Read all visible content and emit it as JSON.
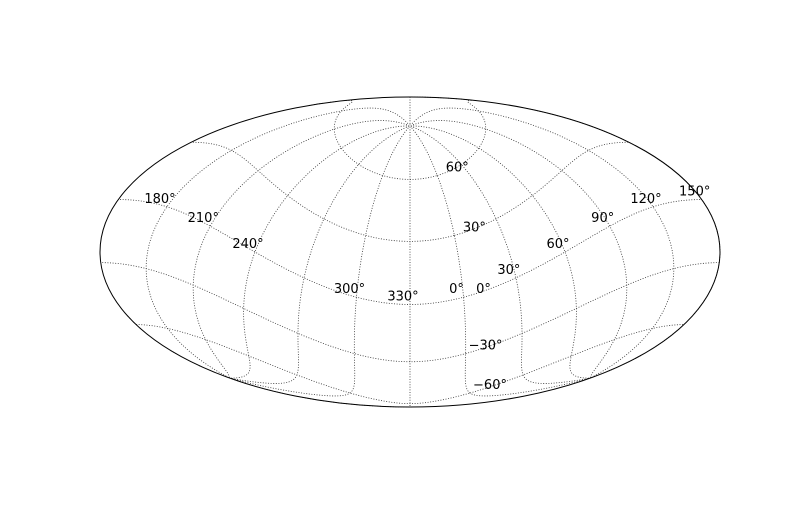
{
  "chart_data": {
    "type": "scatter",
    "projection": "mollweide",
    "title": "",
    "grid": true,
    "grid_style": "dotted",
    "grid_pole": {
      "rotation_deg": 30,
      "tilt_deg": 25
    },
    "frame_color": "#000000",
    "grid_color": "#333333",
    "parallels_deg": [
      -60,
      -30,
      0,
      30,
      60
    ],
    "meridians_deg": [
      0,
      30,
      60,
      90,
      120,
      150,
      180,
      210,
      240,
      270,
      300,
      330
    ],
    "lat_labels": [
      {
        "value": 60,
        "text": "60°"
      },
      {
        "value": 30,
        "text": "30°"
      },
      {
        "value": 0,
        "text": "0°"
      },
      {
        "value": -30,
        "text": "−30°"
      },
      {
        "value": -60,
        "text": "−60°"
      }
    ],
    "lon_labels": [
      {
        "value": 240,
        "text": "240°"
      },
      {
        "value": 210,
        "text": "210°"
      },
      {
        "value": 180,
        "text": "180°"
      },
      {
        "value": 150,
        "text": "150°"
      },
      {
        "value": 120,
        "text": "120°"
      },
      {
        "value": 90,
        "text": "90°"
      },
      {
        "value": 60,
        "text": "60°"
      },
      {
        "value": 30,
        "text": "30°"
      },
      {
        "value": 0,
        "text": "0°"
      },
      {
        "value": 330,
        "text": "330°"
      },
      {
        "value": 300,
        "text": "300°"
      }
    ]
  }
}
